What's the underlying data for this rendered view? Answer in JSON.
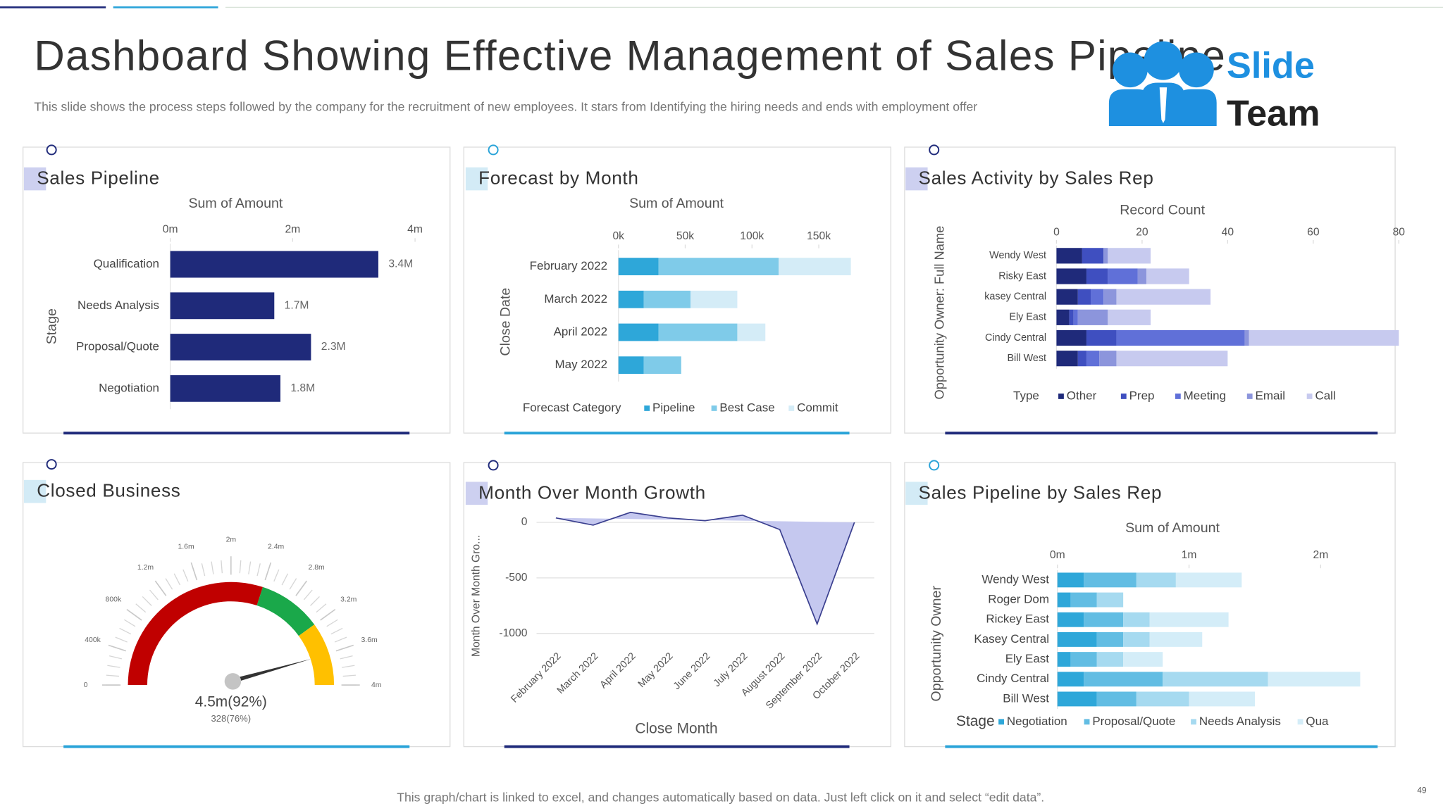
{
  "title": "Dashboard Showing Effective Management of Sales Pipeline",
  "subtitle": "This slide shows the process steps followed by the company for the recruitment of new employees. It stars from Identifying the hiring needs and ends with employment offer",
  "logo": [
    "Slide",
    "Team"
  ],
  "footer": "This graph/chart is linked to excel, and changes automatically based on data. Just left click on it and select “edit data”.",
  "page_number": "49",
  "chart_data": [
    {
      "type": "bar",
      "title": "Sales Pipeline",
      "x_label": "Sum of Amount",
      "y_label": "Stage",
      "categories": [
        "Qualification",
        "Needs Analysis",
        "Proposal/Quote",
        "Negotiation"
      ],
      "values": [
        3.4,
        1.7,
        2.3,
        1.8
      ],
      "value_labels": [
        "3.4M",
        "1.7M",
        "2.3M",
        "1.8M"
      ],
      "color": "#1f2a7a",
      "xlim": [
        0,
        4
      ],
      "xticks": [
        {
          "value": 0,
          "label": "0m"
        },
        {
          "value": 2,
          "label": "2m"
        },
        {
          "value": 4,
          "label": "4m"
        }
      ]
    },
    {
      "type": "stacked_bar",
      "title": "Forecast by Month",
      "x_label": "Sum of Amount",
      "y_label": "Close Date",
      "legend_title": "Forecast Category",
      "categories": [
        "February 2022",
        "March 2022",
        "April 2022",
        "May 2022"
      ],
      "series": [
        {
          "name": "Pipeline",
          "color": "#2ea7d9",
          "values": [
            30,
            19,
            30,
            19
          ]
        },
        {
          "name": "Best Case",
          "color": "#7fcbe9",
          "values": [
            90,
            35,
            59,
            28
          ]
        },
        {
          "name": "Commit",
          "color": "#d4ecf7",
          "values": [
            54,
            35,
            21,
            0
          ]
        }
      ],
      "xlim": [
        0,
        175
      ],
      "xticks": [
        {
          "value": 0,
          "label": "0k"
        },
        {
          "value": 50,
          "label": "50k"
        },
        {
          "value": 100,
          "label": "100k"
        },
        {
          "value": 150,
          "label": "150k"
        }
      ]
    },
    {
      "type": "stacked_bar",
      "title": "Sales Activity by Sales Rep",
      "x_label": "Record Count",
      "y_label": "Opportunity Owner: Full Name",
      "legend_title": "Type",
      "categories": [
        "Wendy West",
        "Risky East",
        "kasey Central",
        "Ely East",
        "Cindy Central",
        "Bill West"
      ],
      "series": [
        {
          "name": "Other",
          "color": "#1f2a7a",
          "values": [
            6,
            7,
            5,
            3,
            7,
            5
          ]
        },
        {
          "name": "Prep",
          "color": "#3f4fc0",
          "values": [
            5,
            5,
            3,
            1,
            7,
            2
          ]
        },
        {
          "name": "Meeting",
          "color": "#6070d8",
          "values": [
            0,
            7,
            3,
            1,
            30,
            3
          ]
        },
        {
          "name": "Email",
          "color": "#8c95dc",
          "values": [
            1,
            2,
            3,
            7,
            1,
            4
          ]
        },
        {
          "name": "Call",
          "color": "#c7caef",
          "values": [
            10,
            10,
            22,
            10,
            35,
            26
          ]
        }
      ],
      "xlim": [
        0,
        80
      ],
      "xticks": [
        0,
        20,
        40,
        60,
        80
      ]
    },
    {
      "type": "gauge",
      "title": "Closed Business",
      "lim": [
        0,
        4
      ],
      "ticks": [
        0,
        {
          "value": 0.4,
          "label": "400k"
        },
        {
          "value": 0.8,
          "label": "800k"
        },
        {
          "value": 1.2,
          "label": "1.2m"
        },
        {
          "value": 1.6,
          "label": "1.6m"
        },
        {
          "value": 2,
          "label": "2m"
        },
        {
          "value": 2.4,
          "label": "2.4m"
        },
        {
          "value": 2.8,
          "label": "2.8m"
        },
        {
          "value": 3.2,
          "label": "3.2m"
        },
        {
          "value": 3.6,
          "label": "3.6m"
        },
        {
          "value": 4,
          "label": "4m"
        }
      ],
      "bands": [
        {
          "to": 2.4,
          "color": "#c00000"
        },
        {
          "to": 3.2,
          "color": "#1aa84a"
        },
        {
          "to": 4,
          "color": "#ffc000"
        }
      ],
      "value": 3.6,
      "center_label": "4.5m(92%)",
      "sub_label": "328(76%)"
    },
    {
      "type": "area",
      "title": "Month Over Month Growth",
      "x_label": "Close Month",
      "y_label": "Month Over Month Gro...",
      "categories": [
        "February 2022",
        "March 2022",
        "April 2022",
        "May 2022",
        "June 2022",
        "July 2022",
        "August 2022",
        "September 2022",
        "October 2022"
      ],
      "values": [
        40,
        -25,
        90,
        40,
        15,
        65,
        -65,
        -915,
        0
      ],
      "color": "#3a3f8f",
      "fill": "#c5c8ef",
      "ylim": [
        -1100,
        100
      ],
      "yticks": [
        0,
        -500,
        -1000
      ],
      "grid": true
    },
    {
      "type": "stacked_bar",
      "title": "Sales Pipeline by Sales Rep",
      "x_label": "Sum of Amount",
      "y_label": "Opportunity Owner",
      "legend_title": "Stage",
      "categories": [
        "Wendy West",
        "Roger Dom",
        "Rickey East",
        "Kasey Central",
        "Ely East",
        "Cindy Central",
        "Bill West"
      ],
      "series": [
        {
          "name": "Negotiation",
          "color": "#2ea7d9",
          "values": [
            0.2,
            0.1,
            0.2,
            0.3,
            0.1,
            0.2,
            0.3
          ]
        },
        {
          "name": "Proposal/Quote",
          "color": "#62bde3",
          "values": [
            0.4,
            0.2,
            0.3,
            0.2,
            0.2,
            0.6,
            0.3
          ]
        },
        {
          "name": "Needs Analysis",
          "color": "#a6daf0",
          "values": [
            0.3,
            0.2,
            0.2,
            0.2,
            0.2,
            0.8,
            0.4
          ]
        },
        {
          "name": "Qua",
          "color": "#d4edf8",
          "values": [
            0.5,
            0,
            0.6,
            0.4,
            0.3,
            0.7,
            0.5
          ]
        }
      ],
      "xlim": [
        0,
        2.3
      ],
      "xticks": [
        {
          "value": 0,
          "label": "0m"
        },
        {
          "value": 1,
          "label": "1m"
        },
        {
          "value": 2,
          "label": "2m"
        }
      ]
    }
  ]
}
